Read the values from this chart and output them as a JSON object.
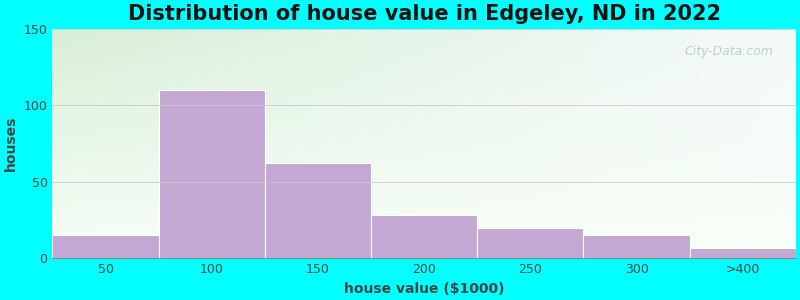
{
  "title": "Distribution of house value in Edgeley, ND in 2022",
  "xlabel": "house value ($1000)",
  "ylabel": "houses",
  "bar_labels": [
    "50",
    "100",
    "150",
    "200",
    "250",
    "300",
    ">400"
  ],
  "bar_values": [
    15,
    110,
    62,
    28,
    20,
    15,
    7
  ],
  "bar_color": "#C4A8D4",
  "bar_edge_color": "#C4A8D4",
  "ylim": [
    0,
    150
  ],
  "yticks": [
    0,
    50,
    100,
    150
  ],
  "background_outer": "#00FFFF",
  "bg_gradient_topleft": "#D8EED8",
  "bg_gradient_topright": "#E8F5F5",
  "bg_gradient_bottom": "#F0FAF0",
  "title_fontsize": 15,
  "axis_label_fontsize": 10,
  "tick_fontsize": 9,
  "watermark_text": "City-Data.com",
  "watermark_color": "#B0C8C8"
}
